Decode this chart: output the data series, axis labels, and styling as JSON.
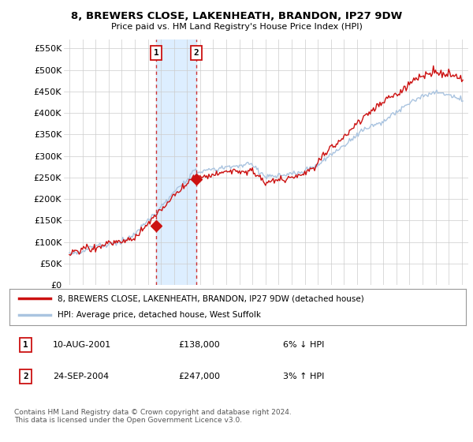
{
  "title": "8, BREWERS CLOSE, LAKENHEATH, BRANDON, IP27 9DW",
  "subtitle": "Price paid vs. HM Land Registry's House Price Index (HPI)",
  "ylabel_ticks": [
    "£0",
    "£50K",
    "£100K",
    "£150K",
    "£200K",
    "£250K",
    "£300K",
    "£350K",
    "£400K",
    "£450K",
    "£500K",
    "£550K"
  ],
  "ytick_values": [
    0,
    50000,
    100000,
    150000,
    200000,
    250000,
    300000,
    350000,
    400000,
    450000,
    500000,
    550000
  ],
  "ylim": [
    0,
    570000
  ],
  "hpi_color": "#aac4e0",
  "price_color": "#cc1111",
  "vline_color": "#cc3333",
  "shade_color": "#ddeeff",
  "sale1_x": 2001.625,
  "sale1_price": 138000,
  "sale2_x": 2004.708,
  "sale2_price": 247000,
  "legend_line1": "8, BREWERS CLOSE, LAKENHEATH, BRANDON, IP27 9DW (detached house)",
  "legend_line2": "HPI: Average price, detached house, West Suffolk",
  "table_row1_num": "1",
  "table_row1_date": "10-AUG-2001",
  "table_row1_price": "£138,000",
  "table_row1_hpi": "6% ↓ HPI",
  "table_row2_num": "2",
  "table_row2_date": "24-SEP-2004",
  "table_row2_price": "£247,000",
  "table_row2_hpi": "3% ↑ HPI",
  "footnote": "Contains HM Land Registry data © Crown copyright and database right 2024.\nThis data is licensed under the Open Government Licence v3.0.",
  "background_color": "#ffffff",
  "grid_color": "#cccccc",
  "xstart": 1995,
  "xend": 2025
}
